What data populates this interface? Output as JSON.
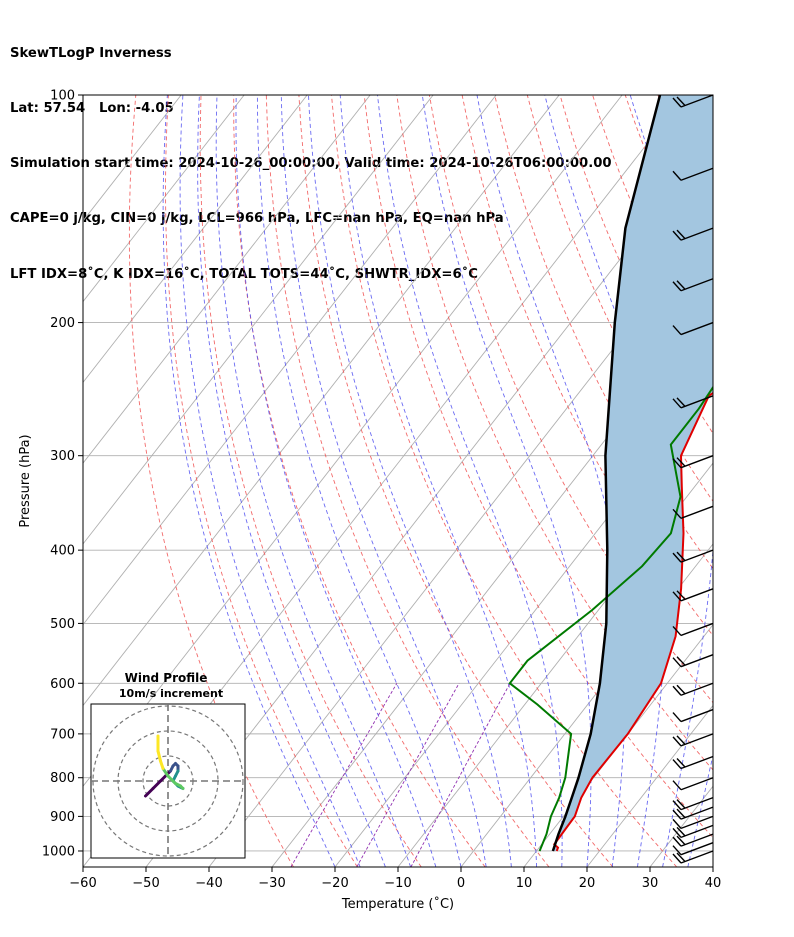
{
  "header": {
    "title": "SkewTLogP Inverness",
    "location": "Lat: 57.54   Lon: -4.05",
    "times": "Simulation start time: 2024-10-26_00:00:00, Valid time: 2024-10-26T06:00:00.00",
    "parcel": "CAPE=0 j/kg, CIN=0 j/kg, LCL=966 hPa, LFC=nan hPa, EQ=nan hPa",
    "indices": "LFT IDX=8˚C, K IDX=16˚C, TOTAL TOTS=44˚C, SHWTR_IDX=6˚C"
  },
  "chart_data": [
    {
      "type": "line",
      "name": "skew-t-logp",
      "xlabel": "Temperature (˚C)",
      "ylabel": "Pressure (hPa)",
      "xlim": [
        -60,
        40
      ],
      "ylim": [
        1050,
        100
      ],
      "y_scale": "log",
      "skewed_isotherms": true,
      "grid": true,
      "x_ticks": [
        -60,
        -50,
        -40,
        -30,
        -20,
        -10,
        0,
        10,
        20,
        30,
        40
      ],
      "y_ticks": [
        100,
        200,
        300,
        400,
        500,
        600,
        700,
        800,
        900,
        1000
      ],
      "series": [
        {
          "role": "temperature",
          "color": "#e00000",
          "points": [
            [
              13.2,
              1000
            ],
            [
              13.0,
              990
            ],
            [
              12.0,
              980
            ],
            [
              11.8,
              900
            ],
            [
              10.5,
              850
            ],
            [
              9.8,
              800
            ],
            [
              10.0,
              700
            ],
            [
              9.0,
              600
            ],
            [
              5.5,
              520
            ],
            [
              0.5,
              450
            ],
            [
              -6.0,
              380
            ],
            [
              -12.0,
              330
            ],
            [
              -16.0,
              300
            ],
            [
              -19.0,
              250
            ],
            [
              -16.5,
              235
            ],
            [
              -9.0,
              205
            ],
            [
              -8.0,
              190
            ],
            [
              -5.0,
              165
            ],
            [
              -2.0,
              140
            ],
            [
              0.0,
              120
            ],
            [
              2.5,
              100
            ]
          ]
        },
        {
          "role": "dewpoint",
          "color": "#007a00",
          "points": [
            [
              10.5,
              1000
            ],
            [
              9.5,
              950
            ],
            [
              8.0,
              900
            ],
            [
              7.0,
              850
            ],
            [
              5.5,
              800
            ],
            [
              1.0,
              700
            ],
            [
              -8.0,
              640
            ],
            [
              -15.0,
              600
            ],
            [
              -15.0,
              560
            ],
            [
              -11.0,
              480
            ],
            [
              -8.5,
              420
            ],
            [
              -8.0,
              380
            ],
            [
              -11.0,
              340
            ],
            [
              -19.0,
              290
            ],
            [
              -19.0,
              260
            ],
            [
              -20.0,
              220
            ],
            [
              -22.5,
              205
            ],
            [
              -27.0,
              180
            ],
            [
              -26.5,
              160
            ],
            [
              -24.0,
              140
            ],
            [
              -19.0,
              120
            ],
            [
              -14.0,
              100
            ]
          ]
        },
        {
          "role": "parcel",
          "color": "#000000",
          "points": [
            [
              12.6,
              1000
            ],
            [
              11.4,
              950
            ],
            [
              10.3,
              900
            ],
            [
              9.0,
              850
            ],
            [
              7.6,
              800
            ],
            [
              4.1,
              700
            ],
            [
              -0.7,
              600
            ],
            [
              -7.1,
              500
            ],
            [
              -16.0,
              400
            ],
            [
              -28.0,
              300
            ],
            [
              -43.0,
              200
            ],
            [
              -53.0,
              150
            ],
            [
              -64.0,
              100
            ]
          ]
        }
      ],
      "shaded_region": "between temperature and parcel",
      "wind_barbs_pressure": [
        1000,
        975,
        950,
        925,
        900,
        875,
        850,
        800,
        750,
        700,
        650,
        600,
        550,
        500,
        450,
        400,
        350,
        300,
        250,
        200,
        175,
        150,
        125,
        100
      ],
      "background_lines": [
        "dry adiabats",
        "moist adiabats",
        "mixing ratio lines",
        "skewed isotherms"
      ]
    },
    {
      "type": "scatter",
      "name": "hodograph",
      "title": "Wind Profile",
      "subtitle": "10m/s increment",
      "ring_increment": 10,
      "rings": [
        10,
        20,
        30
      ],
      "crosshair": "dashed",
      "color_scale": "viridis by pressure level",
      "series": [
        {
          "role": "wind trace",
          "points": [
            [
              -9,
              -6
            ],
            [
              -6,
              -3
            ],
            [
              -3,
              0
            ],
            [
              -1,
              2
            ],
            [
              1,
              4
            ],
            [
              2,
              6
            ],
            [
              3,
              7
            ],
            [
              4,
              6
            ],
            [
              4,
              4
            ],
            [
              3,
              2
            ],
            [
              2,
              0
            ],
            [
              4,
              -2
            ],
            [
              6,
              -3
            ],
            [
              5,
              -2
            ],
            [
              3,
              -1
            ],
            [
              0,
              2
            ],
            [
              -2,
              5
            ],
            [
              -3,
              8
            ],
            [
              -4,
              12
            ],
            [
              -4,
              18
            ]
          ]
        }
      ]
    }
  ]
}
